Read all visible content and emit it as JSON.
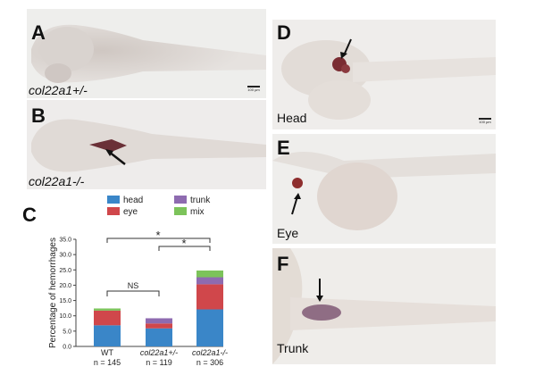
{
  "panels": {
    "A": {
      "label": "A",
      "genotype": "col22a1+/-",
      "scale_bar": "100 µm"
    },
    "B": {
      "label": "B",
      "genotype": "col22a1-/-"
    },
    "D": {
      "label": "D",
      "region": "Head",
      "scale_bar": "100 µm"
    },
    "E": {
      "label": "E",
      "region": "Eye"
    },
    "F": {
      "label": "F",
      "region": "Trunk"
    }
  },
  "panel_C": {
    "label": "C"
  },
  "colors": {
    "head": "#3a86c8",
    "eye": "#d0474b",
    "trunk": "#8e6bb0",
    "mix": "#7cc35a"
  },
  "chart_data": {
    "type": "bar",
    "stacked": true,
    "ylabel": "Percentage of hemorrhages",
    "ylim": [
      0,
      35
    ],
    "yticks": [
      "0.0",
      "5.0",
      "10.0",
      "15.0",
      "20.0",
      "25.0",
      "30.0",
      "35.0"
    ],
    "categories": [
      "WT",
      "col22a1+/-",
      "col22a1-/-"
    ],
    "n_labels": [
      "n = 145",
      "n = 119",
      "n = 306"
    ],
    "series": [
      {
        "name": "head",
        "values": [
          6.9,
          5.9,
          12.1
        ]
      },
      {
        "name": "eye",
        "values": [
          4.8,
          1.6,
          8.2
        ]
      },
      {
        "name": "trunk",
        "values": [
          0.0,
          1.7,
          2.3
        ]
      },
      {
        "name": "mix",
        "values": [
          0.7,
          0.0,
          2.2
        ]
      }
    ],
    "legend": [
      "head",
      "trunk",
      "eye",
      "mix"
    ],
    "annotations": [
      "NS",
      "*",
      "*"
    ]
  }
}
